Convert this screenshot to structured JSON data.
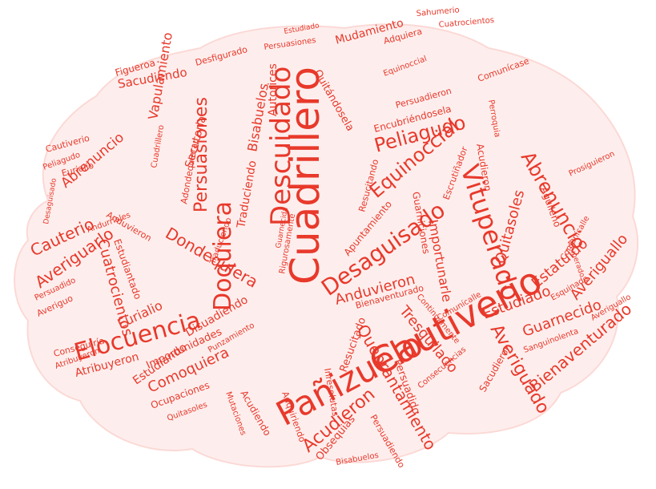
{
  "colors": {
    "ink": "#e8392b",
    "shape": "#fdeeed",
    "background": "#ffffff"
  },
  "words": {
    "w01": "Cuadrillero",
    "w02": "Descuidado",
    "w03": "Cautiverio",
    "w04": "Pañizuelo",
    "w05": "Vituperado",
    "w06": "Desaguisado",
    "w07": "Doquiera",
    "w08": "Elocuencia",
    "w09": "Equinoccial",
    "w10": "Peliagudo",
    "w11": "Abrenuncio",
    "w12": "Averiguado",
    "w13": "Acudieron",
    "w14": "Quebrantamiento",
    "w15": "Persuasiones",
    "w16": "Bienaventurado",
    "w17": "Anduvieron",
    "w18": "Averiguallo",
    "w19": "Averiguarlo",
    "w20": "Tresquilado",
    "w21": "Dondequiera",
    "w22": "Estudiado",
    "w23": "Guarnecido",
    "w24": "Cuatrocientos",
    "w25": "Comoquiera",
    "w26": "Cauterio",
    "w27": "Sacudiendo",
    "w28": "Vapulamiento",
    "w29": "Quitasoles",
    "w30": "Estatuido",
    "w31": "Importunarle",
    "w32": "Autorices",
    "w33": "Bisabuelos",
    "w34": "Mudamiento",
    "w35": "Eurialio",
    "w36": "Atribuyeron",
    "w37": "Traduciendo",
    "w38": "Estudiando",
    "w39": "Disuadiendo",
    "w40": "Secutoria",
    "w41": "Persuadido",
    "w42": "Obsequias",
    "w43": "Resucitado",
    "w44": "Importunidades",
    "w45": "Ocupaciones",
    "w46": "Cautiverio",
    "w47": "Peliagudo",
    "w48": "Abrenuncio",
    "w49": "Figueroa",
    "w50": "Sahumerio",
    "w51": "Cuatrocientos",
    "w52": "Estudiado",
    "w53": "Adquiera",
    "w54": "Persuasiones",
    "w55": "Desfigurado",
    "w56": "Quitándosela",
    "w57": "Encubriéndosela",
    "w58": "Persuadieron",
    "w59": "Comunícase",
    "w60": "Perroquia",
    "w61": "Equinoccial",
    "w62": "Apuntamiento",
    "w63": "Guarniciones",
    "w64": "Resucitando",
    "w65": "Escrutiñador",
    "w66": "Aguileño",
    "w67": "Comunícalle",
    "w68": "Acudieron",
    "w69": "Mutaciones",
    "w70": "Adquiriendo",
    "w71": "Bisabuelos",
    "w72": "Consecuencias",
    "w73": "Sacudieron",
    "w74": "Inresolutas",
    "w75": "Persuadiendo",
    "w76": "Acudiendo",
    "w77": "Quitasoles",
    "w78": "Eurialio",
    "w79": "Conseguiría",
    "w80": "Averiguo",
    "w81": "Persuadido",
    "w82": "Cuadrillero",
    "w83": "Adondequiera",
    "w84": "Estudiantado",
    "w85": "Punzamiento",
    "w86": "Andurriales",
    "w87": "Continuamente",
    "w88": "Sanguinolenta",
    "w89": "Esquinado",
    "w90": "Comunícalle",
    "w91": "Prosiguieron",
    "w92": "Desaguisado",
    "w93": "Anduvieron",
    "w94": "Rigurosamente",
    "w95": "Averiguallo",
    "w96": "Guarnecida",
    "w97": "Traduciendo",
    "w98": "Vituperado",
    "w99": "Atribuyeron",
    "w100": "Bienaventurado"
  }
}
